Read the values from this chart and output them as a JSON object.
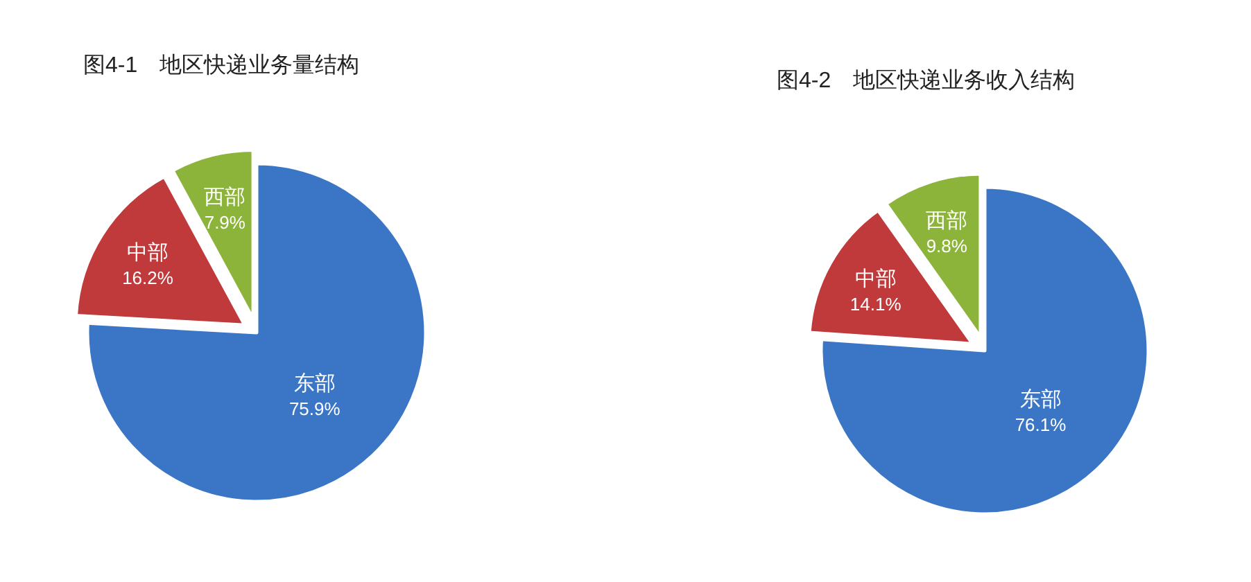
{
  "chart_data": [
    {
      "type": "pie",
      "title": "图4-1　地区快递业务量结构",
      "categories": [
        "东部",
        "中部",
        "西部"
      ],
      "values": [
        75.9,
        16.2,
        7.9
      ],
      "colors": [
        "#3b76c6",
        "#c0393b",
        "#8db43a"
      ],
      "value_labels": [
        "75.9%",
        "16.2%",
        "7.9%"
      ]
    },
    {
      "type": "pie",
      "title": "图4-2　地区快递业务收入结构",
      "categories": [
        "东部",
        "中部",
        "西部"
      ],
      "values": [
        76.1,
        14.1,
        9.8
      ],
      "colors": [
        "#3b76c6",
        "#c0393b",
        "#8db43a"
      ],
      "value_labels": [
        "76.1%",
        "14.1%",
        "9.8%"
      ]
    }
  ]
}
